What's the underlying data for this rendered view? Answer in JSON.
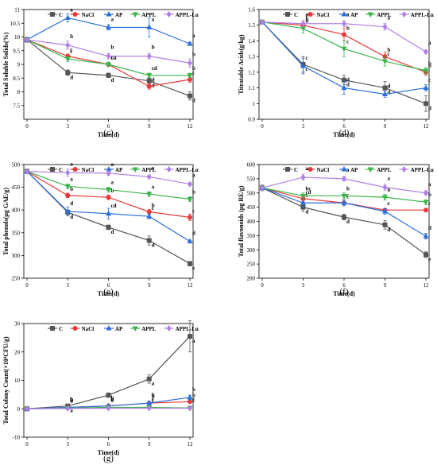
{
  "legend_labels": [
    "C",
    "NaCl",
    "AP",
    "APPL",
    "APPL-Lu"
  ],
  "series_colors": {
    "C": "#555555",
    "NaCl": "#e8393a",
    "AP": "#2a6fdb",
    "APPL": "#39b54a",
    "APPL-Lu": "#b07fe6"
  },
  "chart_data": [
    {
      "panel": "(c)",
      "type": "line",
      "x": [
        0,
        3,
        6,
        9,
        12
      ],
      "xlabel": "Time(d)",
      "ylabel": "Total Soluble Solids(%)",
      "ylim": [
        7.0,
        11.0
      ],
      "yticks": [
        7.5,
        8,
        8.5,
        9,
        9.5,
        10,
        10.5,
        11
      ],
      "legend_position": "top",
      "series": [
        {
          "name": "C",
          "values": [
            9.9,
            8.7,
            8.6,
            8.4,
            7.85
          ],
          "errors": [
            0.1,
            0.1,
            0.08,
            0.1,
            0.15
          ],
          "letters": [
            "",
            "d",
            "d",
            "d",
            "d"
          ]
        },
        {
          "name": "NaCl",
          "values": [
            9.9,
            9.3,
            9.0,
            8.2,
            8.45
          ],
          "errors": [
            0.1,
            0.08,
            0.08,
            0.1,
            0.1
          ],
          "letters": [
            "",
            "c",
            "cd",
            "d",
            "c"
          ]
        },
        {
          "name": "AP",
          "values": [
            9.9,
            10.7,
            10.35,
            10.35,
            9.75
          ],
          "errors": [
            0.1,
            0.15,
            0.1,
            0.35,
            0.05
          ],
          "letters": [
            "",
            "a",
            "a",
            "a",
            "a"
          ]
        },
        {
          "name": "APPL",
          "values": [
            9.9,
            9.2,
            9.0,
            8.6,
            8.6
          ],
          "errors": [
            0.1,
            0.08,
            0.08,
            0.08,
            0.08
          ],
          "letters": [
            "",
            "c",
            "c",
            "cd",
            "b"
          ]
        },
        {
          "name": "APPL-Lu",
          "values": [
            9.9,
            9.7,
            9.3,
            9.3,
            9.05
          ],
          "errors": [
            0.1,
            0.15,
            0.1,
            0.1,
            0.15
          ],
          "letters": [
            "",
            "b",
            "b",
            "b",
            "b"
          ]
        }
      ]
    },
    {
      "panel": "(d)",
      "type": "line",
      "x": [
        0,
        3,
        6,
        9,
        12
      ],
      "xlabel": "Time(d)",
      "ylabel": "Titratable Acids(g/kg)",
      "ylim": [
        0.9,
        1.6
      ],
      "yticks": [
        0.9,
        1.0,
        1.1,
        1.2,
        1.3,
        1.4,
        1.5,
        1.6
      ],
      "legend_position": "top",
      "series": [
        {
          "name": "C",
          "values": [
            1.52,
            1.25,
            1.15,
            1.1,
            1.0
          ],
          "errors": [
            0.01,
            0.05,
            0.03,
            0.04,
            0.05
          ],
          "letters": [
            "",
            "c",
            "d",
            "d",
            "d"
          ]
        },
        {
          "name": "NaCl",
          "values": [
            1.52,
            1.5,
            1.44,
            1.3,
            1.2
          ],
          "errors": [
            0.01,
            0.02,
            0.04,
            0.03,
            0.02
          ],
          "letters": [
            "",
            "b",
            "b",
            "b",
            "b"
          ]
        },
        {
          "name": "AP",
          "values": [
            1.52,
            1.24,
            1.1,
            1.06,
            1.1
          ],
          "errors": [
            0.01,
            0.05,
            0.04,
            0.02,
            0.02
          ],
          "letters": [
            "",
            "c",
            "d",
            "d",
            "c"
          ]
        },
        {
          "name": "APPL",
          "values": [
            1.52,
            1.48,
            1.35,
            1.27,
            1.21
          ],
          "errors": [
            0.01,
            0.03,
            0.05,
            0.03,
            0.02
          ],
          "letters": [
            "",
            "b",
            "c",
            "c",
            "b"
          ]
        },
        {
          "name": "APPL-Lu",
          "values": [
            1.52,
            1.51,
            1.51,
            1.49,
            1.33
          ],
          "errors": [
            0.01,
            0.02,
            0.02,
            0.02,
            0.01
          ],
          "letters": [
            "",
            "a",
            "a",
            "a",
            "a"
          ]
        }
      ]
    },
    {
      "panel": "(e)",
      "type": "line",
      "x": [
        0,
        3,
        6,
        9,
        12
      ],
      "xlabel": "Time(d)",
      "ylabel": "Total phenols(μg GAE/g)",
      "ylim": [
        250,
        500
      ],
      "yticks": [
        250,
        300,
        350,
        400,
        450,
        500
      ],
      "legend_position": "top",
      "series": [
        {
          "name": "C",
          "values": [
            485,
            395,
            362,
            333,
            282
          ],
          "errors": [
            5,
            5,
            5,
            10,
            5
          ],
          "letters": [
            "",
            "d",
            "d",
            "d",
            "e"
          ]
        },
        {
          "name": "NaCl",
          "values": [
            485,
            432,
            428,
            396,
            384
          ],
          "errors": [
            5,
            5,
            5,
            5,
            7
          ],
          "letters": [
            "",
            "b",
            "b",
            "b",
            "c"
          ]
        },
        {
          "name": "AP",
          "values": [
            485,
            397,
            392,
            386,
            331
          ],
          "errors": [
            5,
            10,
            12,
            5,
            3
          ],
          "letters": [
            "",
            "d",
            "cd",
            "c",
            "d"
          ]
        },
        {
          "name": "APPL",
          "values": [
            485,
            452,
            445,
            435,
            424
          ],
          "errors": [
            5,
            5,
            5,
            5,
            5
          ],
          "letters": [
            "",
            "a",
            "a",
            "a",
            "b"
          ]
        },
        {
          "name": "APPL-Lu",
          "values": [
            485,
            482,
            481,
            473,
            457
          ],
          "errors": [
            5,
            8,
            5,
            3,
            3
          ],
          "letters": [
            "",
            "a",
            "a",
            "a",
            "a"
          ]
        }
      ]
    },
    {
      "panel": "(f)",
      "type": "line",
      "x": [
        0,
        3,
        6,
        9,
        12
      ],
      "xlabel": "Time(d)",
      "ylabel": "Total flavonoids (μg RE/g)",
      "ylim": [
        200,
        600
      ],
      "yticks": [
        200,
        250,
        300,
        350,
        400,
        450,
        500,
        550,
        600
      ],
      "legend_position": "top",
      "series": [
        {
          "name": "C",
          "values": [
            518,
            450,
            415,
            388,
            283
          ],
          "errors": [
            10,
            15,
            10,
            15,
            10
          ],
          "letters": [
            "",
            "d",
            "d",
            "d",
            "e"
          ]
        },
        {
          "name": "NaCl",
          "values": [
            518,
            480,
            465,
            440,
            440
          ],
          "errors": [
            10,
            10,
            10,
            5,
            5
          ],
          "letters": [
            "",
            "cd",
            "c",
            "c",
            "c"
          ]
        },
        {
          "name": "AP",
          "values": [
            518,
            465,
            465,
            435,
            348
          ],
          "errors": [
            10,
            15,
            10,
            10,
            10
          ],
          "letters": [
            "",
            "c",
            "c",
            "c",
            "d"
          ]
        },
        {
          "name": "APPL",
          "values": [
            518,
            490,
            490,
            485,
            468
          ],
          "errors": [
            10,
            10,
            10,
            10,
            8
          ],
          "letters": [
            "",
            "bc",
            "b",
            "b",
            "b"
          ]
        },
        {
          "name": "APPL-Lu",
          "values": [
            518,
            555,
            550,
            520,
            500
          ],
          "errors": [
            10,
            10,
            8,
            10,
            8
          ],
          "letters": [
            "",
            "a",
            "a",
            "a",
            "a"
          ]
        }
      ]
    },
    {
      "panel": "(g)",
      "type": "line",
      "x": [
        0,
        3,
        6,
        9,
        12
      ],
      "xlabel": "Time(d)",
      "ylabel": "Total Colony Count(×10⁴CFU/g)",
      "ylim": [
        -10,
        30
      ],
      "yticks": [
        -10,
        0,
        10,
        20,
        30
      ],
      "legend_position": "top",
      "series": [
        {
          "name": "C",
          "values": [
            0,
            1.0,
            4.8,
            10.5,
            25.5
          ],
          "errors": [
            0,
            0.3,
            0.8,
            1.5,
            5.5
          ],
          "letters": [
            "",
            "a",
            "a",
            "a",
            "a"
          ]
        },
        {
          "name": "NaCl",
          "values": [
            0,
            0.5,
            1.0,
            2.0,
            2.5
          ],
          "errors": [
            0,
            0.2,
            0.3,
            0.5,
            0.5
          ],
          "letters": [
            "",
            "b",
            "b",
            "b",
            "b"
          ]
        },
        {
          "name": "AP",
          "values": [
            0,
            0.5,
            1.0,
            2.0,
            4.0
          ],
          "errors": [
            0,
            0.2,
            0.3,
            0.5,
            0.8
          ],
          "letters": [
            "",
            "b",
            "b",
            "b",
            "b"
          ]
        },
        {
          "name": "APPL",
          "values": [
            0,
            0.2,
            0.5,
            0.5,
            0.3
          ],
          "errors": [
            0,
            0.1,
            0.2,
            0.2,
            0.2
          ],
          "letters": [
            "",
            "b",
            "c",
            "c",
            "c"
          ]
        },
        {
          "name": "APPL-Lu",
          "values": [
            0,
            0.1,
            0.2,
            0.2,
            0.2
          ],
          "errors": [
            0,
            0.1,
            0.1,
            0.1,
            0.1
          ],
          "letters": [
            "",
            "b",
            "c",
            "c",
            "c"
          ]
        }
      ]
    }
  ]
}
